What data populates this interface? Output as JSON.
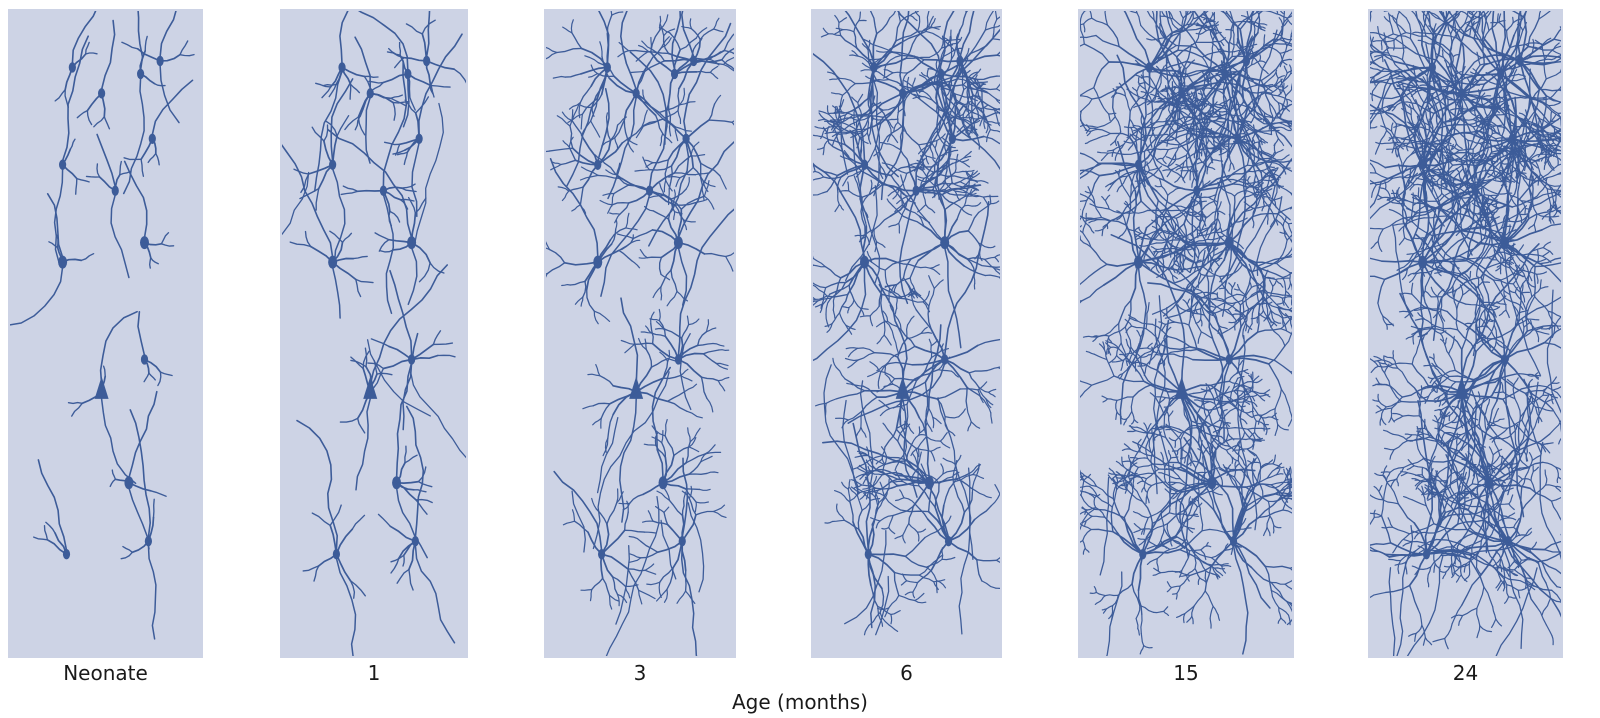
{
  "figure": {
    "xlabel": "Age (months)",
    "panels": [
      {
        "label": "Neonate",
        "density": 0
      },
      {
        "label": "1",
        "density": 1
      },
      {
        "label": "3",
        "density": 2
      },
      {
        "label": "6",
        "density": 3
      },
      {
        "label": "15",
        "density": 4
      },
      {
        "label": "24",
        "density": 5
      }
    ],
    "colors": {
      "panel_bg": "#cdd3e5",
      "neuron": "#3d5c99",
      "text": "#1a1a1a"
    }
  }
}
